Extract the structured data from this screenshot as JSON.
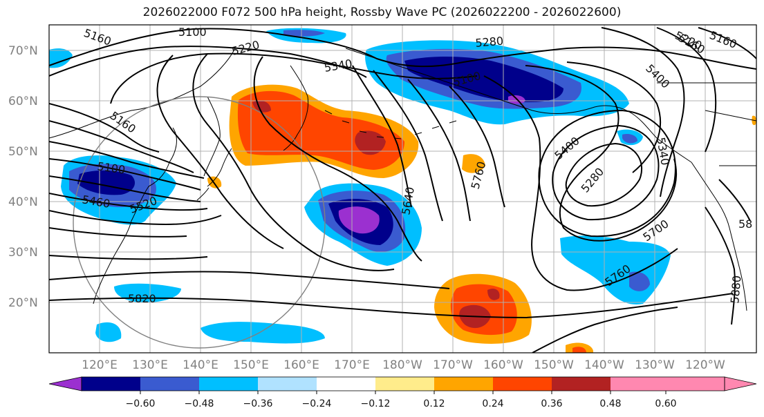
{
  "title": "2026022000 F072 500 hPa height, Rossby Wave PC (2026022200 - 2026022600)",
  "map": {
    "lat_ticks": [
      "70°N",
      "60°N",
      "50°N",
      "40°N",
      "30°N",
      "20°N"
    ],
    "lon_ticks": [
      "120°E",
      "130°E",
      "140°E",
      "150°E",
      "160°E",
      "170°E",
      "180°W",
      "170°W",
      "160°W",
      "150°W",
      "140°W",
      "130°W",
      "120°W"
    ],
    "contour_labels": [
      "5160",
      "5100",
      "5220",
      "5340",
      "5280",
      "5160",
      "5220",
      "5160",
      "5100",
      "5160",
      "5100",
      "5460",
      "5520",
      "5400",
      "5340",
      "5280",
      "5400",
      "5760",
      "5640",
      "5700",
      "5760",
      "5880",
      "5820",
      "58"
    ]
  },
  "colorbar": {
    "labels": [
      "−0.60",
      "−0.48",
      "−0.36",
      "−0.24",
      "−0.12",
      "0.12",
      "0.24",
      "0.36",
      "0.48",
      "0.60"
    ],
    "colors": [
      "#9b30d0",
      "#00008b",
      "#3a5bd0",
      "#00bfff",
      "#b0e2ff",
      "#ffffff",
      "#ffec8b",
      "#ffa500",
      "#ff4500",
      "#b22222",
      "#ff88b0"
    ]
  },
  "colors": {
    "land_outline": "#000000",
    "grid": "#b0b0b0",
    "contour": "#000000",
    "circle": "#808080"
  }
}
